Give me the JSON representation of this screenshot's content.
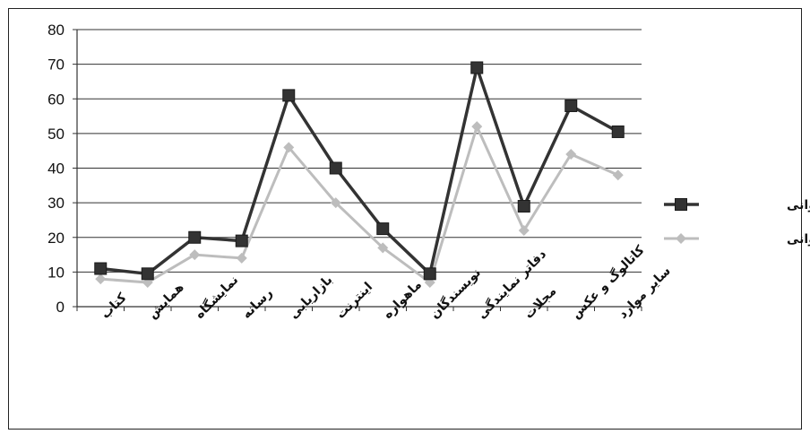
{
  "chart_data": {
    "type": "line",
    "categories": [
      "کتاب",
      "همایش",
      "نمایشگاه",
      "رسانه",
      "بازاریابی",
      "اینترنت",
      "ماهواره",
      "نویسندگان",
      "دفاتر نمایندگی",
      "مجلات",
      "کاتالوگ و عکس",
      "سایر موارد"
    ],
    "series": [
      {
        "name": "درصد فراوانی",
        "color": "#333333",
        "marker": "square",
        "values": [
          11,
          9.5,
          20,
          19,
          61,
          40,
          22.5,
          9.5,
          69,
          29,
          58,
          50.5
        ]
      },
      {
        "name": "فراوانی",
        "color": "#bdbdbd",
        "marker": "diamond",
        "values": [
          8,
          7,
          15,
          14,
          46,
          30,
          17,
          7,
          52,
          22,
          44,
          38
        ]
      }
    ],
    "ylim": [
      0,
      80
    ],
    "yticks": [
      0,
      10,
      20,
      30,
      40,
      50,
      60,
      70,
      80
    ],
    "grid": true,
    "legend": "right"
  }
}
